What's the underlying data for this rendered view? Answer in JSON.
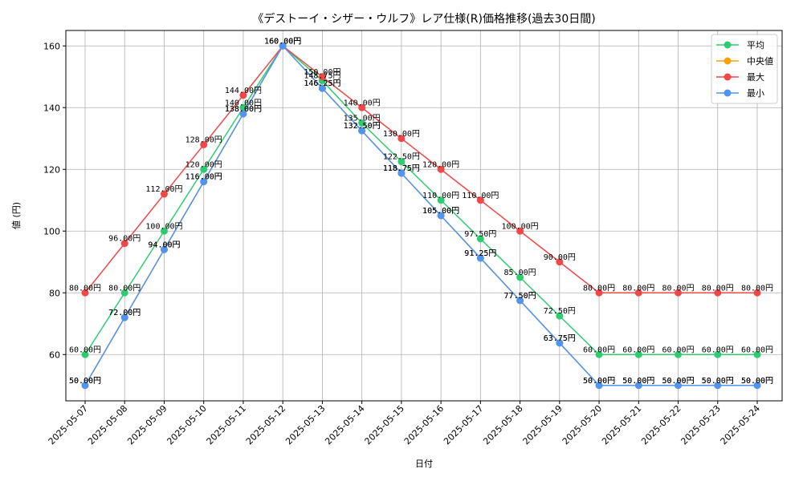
{
  "chart_data": {
    "type": "line",
    "title": "《デストーイ・シザー・ウルフ》レア仕様(R)価格推移(過去30日間)",
    "xlabel": "日付",
    "ylabel": "値 (円)",
    "ylim": [
      45,
      165
    ],
    "yticks": [
      60,
      80,
      100,
      120,
      140,
      160
    ],
    "grid": true,
    "legend_position": "top-right",
    "label_suffix": "円",
    "categories": [
      "2025-05-07",
      "2025-05-08",
      "2025-05-09",
      "2025-05-10",
      "2025-05-11",
      "2025-05-12",
      "2025-05-13",
      "2025-05-14",
      "2025-05-15",
      "2025-05-16",
      "2025-05-17",
      "2025-05-18",
      "2025-05-19",
      "2025-05-20",
      "2025-05-21",
      "2025-05-22",
      "2025-05-23",
      "2025-05-24"
    ],
    "series": [
      {
        "name": "平均",
        "color": "#2ecc71",
        "values": [
          60.0,
          80.0,
          100.0,
          120.0,
          140.0,
          160.0,
          148.75,
          135.0,
          122.5,
          110.0,
          97.5,
          85.0,
          72.5,
          60.0,
          60.0,
          60.0,
          60.0,
          60.0
        ]
      },
      {
        "name": "中央値",
        "color": "#f5a30a",
        "values": [
          50.0,
          72.0,
          94.0,
          116.0,
          138.0,
          160.0,
          146.25,
          132.5,
          118.75,
          105.0,
          91.25,
          77.5,
          63.75,
          50.0,
          50.0,
          50.0,
          50.0,
          50.0
        ]
      },
      {
        "name": "最大",
        "color": "#f04848",
        "values": [
          80.0,
          96.0,
          112.0,
          128.0,
          144.0,
          160.0,
          150.0,
          140.0,
          130.0,
          120.0,
          110.0,
          100.0,
          90.0,
          80.0,
          80.0,
          80.0,
          80.0,
          80.0
        ]
      },
      {
        "name": "最小",
        "color": "#4e94f0",
        "values": [
          50.0,
          72.0,
          94.0,
          116.0,
          138.0,
          160.0,
          146.25,
          132.5,
          118.75,
          105.0,
          91.25,
          77.5,
          63.75,
          50.0,
          50.0,
          50.0,
          50.0,
          50.0
        ]
      }
    ]
  }
}
